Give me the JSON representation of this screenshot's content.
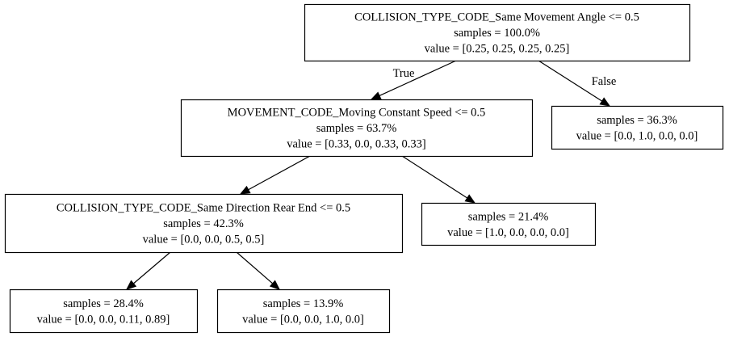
{
  "tree": {
    "nodes": [
      {
        "id": "n0",
        "lines": [
          "COLLISION_TYPE_CODE_Same Movement Angle <= 0.5",
          "samples = 100.0%",
          "value = [0.25, 0.25, 0.25, 0.25]"
        ]
      },
      {
        "id": "n1",
        "lines": [
          "MOVEMENT_CODE_Moving Constant Speed <= 0.5",
          "samples = 63.7%",
          "value = [0.33, 0.0, 0.33, 0.33]"
        ]
      },
      {
        "id": "n2",
        "lines": [
          "samples = 36.3%",
          "value = [0.0, 1.0, 0.0, 0.0]"
        ]
      },
      {
        "id": "n3",
        "lines": [
          "COLLISION_TYPE_CODE_Same Direction Rear End <= 0.5",
          "samples = 42.3%",
          "value = [0.0, 0.0, 0.5, 0.5]"
        ]
      },
      {
        "id": "n4",
        "lines": [
          "samples = 21.4%",
          "value = [1.0, 0.0, 0.0, 0.0]"
        ]
      },
      {
        "id": "n5",
        "lines": [
          "samples = 28.4%",
          "value = [0.0, 0.0, 0.11, 0.89]"
        ]
      },
      {
        "id": "n6",
        "lines": [
          "samples = 13.9%",
          "value = [0.0, 0.0, 1.0, 0.0]"
        ]
      }
    ],
    "edges": [
      {
        "from": "n0",
        "to": "n1",
        "label": "True"
      },
      {
        "from": "n0",
        "to": "n2",
        "label": "False"
      },
      {
        "from": "n1",
        "to": "n3",
        "label": ""
      },
      {
        "from": "n1",
        "to": "n4",
        "label": ""
      },
      {
        "from": "n3",
        "to": "n5",
        "label": ""
      },
      {
        "from": "n3",
        "to": "n6",
        "label": ""
      }
    ]
  }
}
